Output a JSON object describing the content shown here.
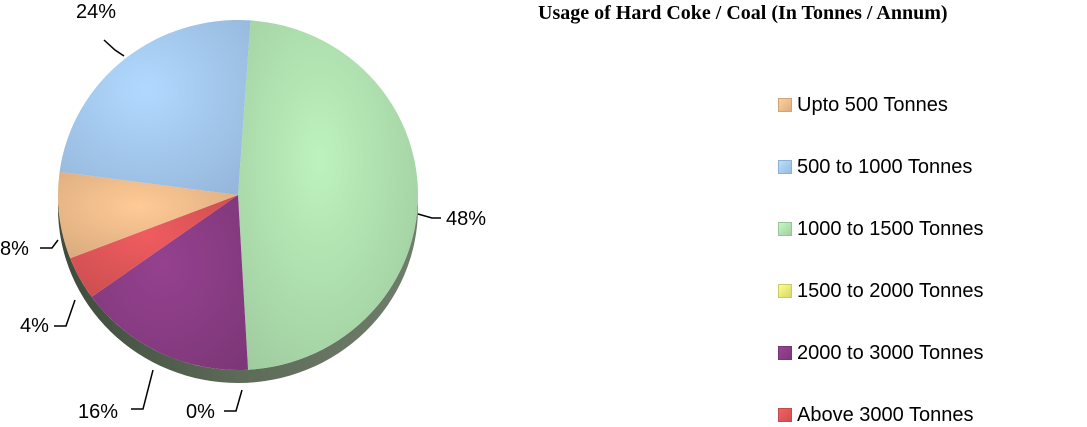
{
  "chart_data": {
    "type": "pie",
    "title": "Usage of Hard Coke / Coal (In Tonnes / Annum)",
    "slices": [
      {
        "label": "Upto 500 Tonnes",
        "value": 8,
        "data_label": "8%",
        "color": "#f5c08e"
      },
      {
        "label": "500 to 1000 Tonnes",
        "value": 24,
        "data_label": "24%",
        "color": "#a9cff8"
      },
      {
        "label": "1000 to 1500 Tonnes",
        "value": 48,
        "data_label": "48%",
        "color": "#b4e6b4"
      },
      {
        "label": "1500 to 2000 Tonnes",
        "value": 0,
        "data_label": "0%",
        "color": "#eeee7a"
      },
      {
        "label": "2000 to 3000 Tonnes",
        "value": 16,
        "data_label": "16%",
        "color": "#8e3e88"
      },
      {
        "label": "Above 3000 Tonnes",
        "value": 4,
        "data_label": "4%",
        "color": "#e4585a"
      }
    ],
    "legend_position": "right"
  }
}
